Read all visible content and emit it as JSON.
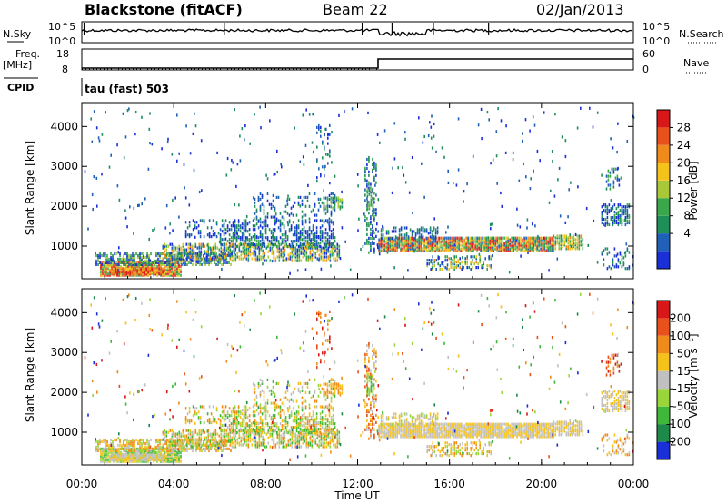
{
  "header": {
    "site": "Blackstone (fitACF)",
    "beam": "Beam 22",
    "date": "02/Jan/2013"
  },
  "strips": {
    "nsky_label": "N.Sky",
    "nsky_ticks": [
      "10^5",
      "10^0"
    ],
    "nsearch_label": "N.Search",
    "nsearch_ticks": [
      "10^5",
      "10^0"
    ],
    "freq_label": "Freq.",
    "freq_unit": "[MHz]",
    "freq_ticks": [
      "18",
      "8"
    ],
    "nave_label": "Nave",
    "nave_ticks": [
      "60",
      "0"
    ],
    "cpid_label": "CPID",
    "cpid_value": "tau (fast) 503"
  },
  "chart_data": [
    {
      "type": "heatmap",
      "name": "power",
      "ylabel": "Slant Range [km]",
      "ylim": [
        180,
        4600
      ],
      "yticks": [
        "4000",
        "3000",
        "2000",
        "1000"
      ],
      "xlim": [
        0,
        24
      ],
      "colorbar": {
        "label": "Power [dB]",
        "ticks": [
          "28",
          "24",
          "20",
          "16",
          "12",
          "8",
          "4"
        ],
        "colors": [
          "#1a2fd8",
          "#2060b8",
          "#1f8f5a",
          "#3aa84a",
          "#a8c83a",
          "#f5c21b",
          "#f08a1a",
          "#e8501c",
          "#d81818"
        ]
      }
    },
    {
      "type": "heatmap",
      "name": "velocity",
      "ylabel": "Slant Range [km]",
      "ylim": [
        180,
        4600
      ],
      "yticks": [
        "4000",
        "3000",
        "2000",
        "1000"
      ],
      "xlim": [
        0,
        24
      ],
      "xlabel": "Time UT",
      "xticks": [
        "00:00",
        "04:00",
        "08:00",
        "12:00",
        "16:00",
        "20:00",
        "00:00"
      ],
      "colorbar": {
        "label": "Velocity [m s⁻¹]",
        "ticks": [
          "200",
          "100",
          "50",
          "15",
          "-15",
          "-50",
          "-100",
          "-200"
        ],
        "colors": [
          "#1a2fd8",
          "#1d8a4a",
          "#3fb83a",
          "#9ad63a",
          "#c0c0c0",
          "#f5c21b",
          "#f08a1a",
          "#e8501c",
          "#d81818"
        ]
      }
    }
  ]
}
